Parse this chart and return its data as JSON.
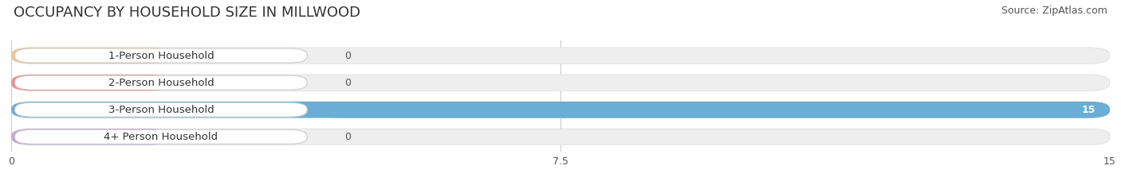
{
  "title": "OCCUPANCY BY HOUSEHOLD SIZE IN MILLWOOD",
  "source": "Source: ZipAtlas.com",
  "categories": [
    "1-Person Household",
    "2-Person Household",
    "3-Person Household",
    "4+ Person Household"
  ],
  "values": [
    0,
    0,
    15,
    0
  ],
  "bar_colors": [
    "#F5C590",
    "#F09090",
    "#6AAED6",
    "#C4A8D4"
  ],
  "bar_label_colors": [
    "#F5C590",
    "#F09090",
    "#6AAED6",
    "#C4A8D4"
  ],
  "xlim": [
    0,
    15
  ],
  "xticks": [
    0,
    7.5,
    15
  ],
  "background_color": "#ffffff",
  "bar_bg_color": "#eeeeee",
  "title_fontsize": 13,
  "source_fontsize": 9,
  "label_fontsize": 9.5,
  "value_fontsize": 9
}
